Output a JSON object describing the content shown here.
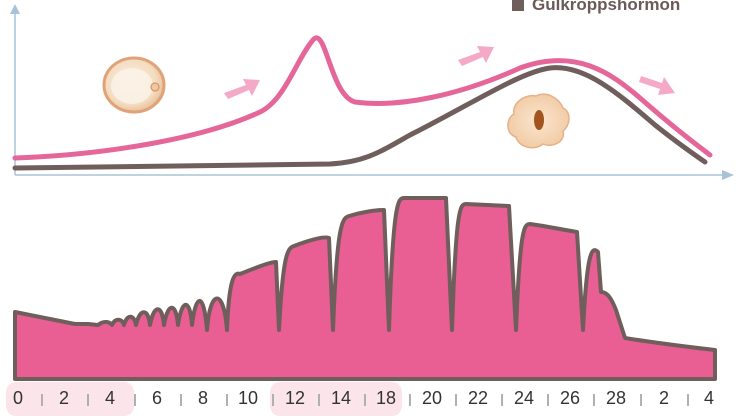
{
  "legend": {
    "label": "Gulkroppshormon",
    "swatch_color": "#6f5e5c"
  },
  "colors": {
    "estrogen_line": "#e5679a",
    "progesterone_line": "#6f5e5c",
    "endometrium_fill": "#e95f93",
    "endometrium_outline": "#6f5e5c",
    "arrow": "#f4aac6",
    "highlight_band": "#fbe4ea"
  },
  "icons": [
    "egg-cell-icon",
    "corpus-luteum-icon",
    "arrow-icon"
  ],
  "axis": {
    "ticks": [
      "0",
      "2",
      "4",
      "6",
      "8",
      "10",
      "12",
      "14",
      "18",
      "20",
      "22",
      "24",
      "26",
      "28",
      "2",
      "4"
    ]
  }
}
